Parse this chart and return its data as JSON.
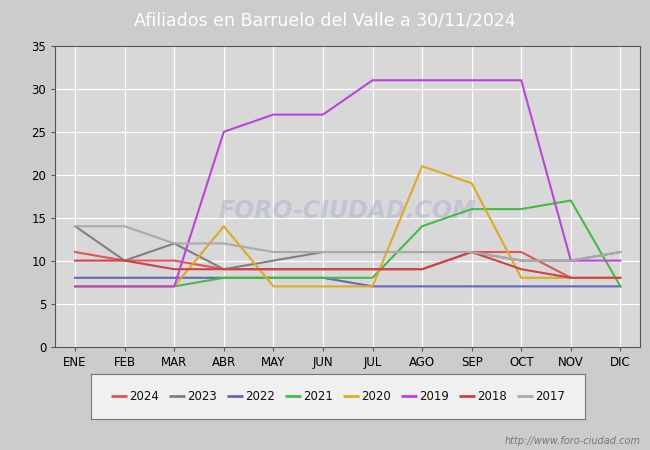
{
  "title": "Afiliados en Barruelo del Valle a 30/11/2024",
  "title_bg_color": "#5b8dd9",
  "title_text_color": "#ffffff",
  "months": [
    "ENE",
    "FEB",
    "MAR",
    "ABR",
    "MAY",
    "JUN",
    "JUL",
    "AGO",
    "SEP",
    "OCT",
    "NOV",
    "DIC"
  ],
  "ylim": [
    0,
    35
  ],
  "yticks": [
    0,
    5,
    10,
    15,
    20,
    25,
    30,
    35
  ],
  "watermark_url": "http://www.foro-ciudad.com",
  "series": {
    "2024": {
      "color": "#e05555",
      "data": [
        11,
        10,
        10,
        9,
        9,
        9,
        9,
        9,
        11,
        11,
        8,
        null
      ]
    },
    "2023": {
      "color": "#808080",
      "data": [
        14,
        10,
        12,
        9,
        10,
        11,
        11,
        11,
        11,
        10,
        10,
        11
      ]
    },
    "2022": {
      "color": "#6666bb",
      "data": [
        8,
        8,
        8,
        8,
        8,
        8,
        7,
        7,
        7,
        7,
        7,
        7
      ]
    },
    "2021": {
      "color": "#44bb44",
      "data": [
        7,
        7,
        7,
        8,
        8,
        8,
        8,
        14,
        16,
        16,
        17,
        7
      ]
    },
    "2020": {
      "color": "#ddaa22",
      "data": [
        7,
        7,
        7,
        14,
        7,
        7,
        7,
        21,
        19,
        8,
        8,
        8
      ]
    },
    "2019": {
      "color": "#bb44dd",
      "data": [
        7,
        7,
        7,
        25,
        27,
        27,
        31,
        31,
        31,
        31,
        10,
        10
      ]
    },
    "2018": {
      "color": "#cc4444",
      "data": [
        10,
        10,
        9,
        9,
        9,
        9,
        9,
        9,
        11,
        9,
        8,
        8
      ]
    },
    "2017": {
      "color": "#aaaaaa",
      "data": [
        14,
        14,
        12,
        12,
        11,
        11,
        11,
        11,
        11,
        10,
        10,
        11
      ]
    }
  },
  "legend_order": [
    "2024",
    "2023",
    "2022",
    "2021",
    "2020",
    "2019",
    "2018",
    "2017"
  ],
  "fig_bg": "#cccccc",
  "plot_bg": "#d8d8d8",
  "grid_color": "#ffffff",
  "border_color": "#555555"
}
